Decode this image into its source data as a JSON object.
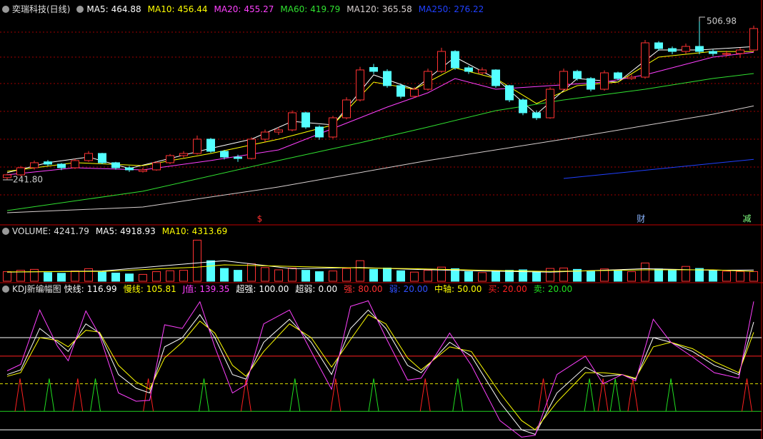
{
  "chart_data": {
    "type": "candlestick",
    "title": "奕瑞科技(日线)",
    "ylim": [
      184.4,
      518.98
    ],
    "candles": [
      [
        245.5,
        252.0,
        241.8,
        250.2
      ],
      [
        250.2,
        265.0,
        248.0,
        262.1
      ],
      [
        262.1,
        274.0,
        259.0,
        270.5
      ],
      [
        272.0,
        275.0,
        265.0,
        268.1
      ],
      [
        268.1,
        270.0,
        258.0,
        262.1
      ],
      [
        262.1,
        277.0,
        260.0,
        274.1
      ],
      [
        274.1,
        290.0,
        272.0,
        286.0
      ],
      [
        286.0,
        287.0,
        268.0,
        270.5
      ],
      [
        270.5,
        272.0,
        259.0,
        262.1
      ],
      [
        262.1,
        265.0,
        255.0,
        258.5
      ],
      [
        256.0,
        262.0,
        254.0,
        258.5
      ],
      [
        258.5,
        273.0,
        257.0,
        270.5
      ],
      [
        270.5,
        285.0,
        268.0,
        282.4
      ],
      [
        282.4,
        290.0,
        279.0,
        286.0
      ],
      [
        286.0,
        316.0,
        284.0,
        309.9
      ],
      [
        309.9,
        312.0,
        287.0,
        289.6
      ],
      [
        289.6,
        292.0,
        276.0,
        280.0
      ],
      [
        280.0,
        284.0,
        272.0,
        277.6
      ],
      [
        277.6,
        313.0,
        276.0,
        309.9
      ],
      [
        309.9,
        326.0,
        305.0,
        321.8
      ],
      [
        321.8,
        330.0,
        317.0,
        325.4
      ],
      [
        325.4,
        358.0,
        323.0,
        354.1
      ],
      [
        354.1,
        356.0,
        327.0,
        330.2
      ],
      [
        330.2,
        333.0,
        309.0,
        313.5
      ],
      [
        313.5,
        349.0,
        311.0,
        345.7
      ],
      [
        345.7,
        380.0,
        343.0,
        375.6
      ],
      [
        375.6,
        431.0,
        373.0,
        425.8
      ],
      [
        430.0,
        436.0,
        419.0,
        423.4
      ],
      [
        423.4,
        427.0,
        396.0,
        399.5
      ],
      [
        399.5,
        403.0,
        378.0,
        381.6
      ],
      [
        381.6,
        397.0,
        379.0,
        393.5
      ],
      [
        393.5,
        428.0,
        391.0,
        423.4
      ],
      [
        423.4,
        463.0,
        421.0,
        456.8
      ],
      [
        456.8,
        459.0,
        426.0,
        429.4
      ],
      [
        429.4,
        433.0,
        419.0,
        423.4
      ],
      [
        421.0,
        430.0,
        418.0,
        425.8
      ],
      [
        425.8,
        427.0,
        396.0,
        399.5
      ],
      [
        399.5,
        401.0,
        372.0,
        375.6
      ],
      [
        375.6,
        378.0,
        350.0,
        354.1
      ],
      [
        354.1,
        358.0,
        342.0,
        345.7
      ],
      [
        345.7,
        397.0,
        344.0,
        393.5
      ],
      [
        393.5,
        428.0,
        391.0,
        423.4
      ],
      [
        423.4,
        426.0,
        408.0,
        411.4
      ],
      [
        411.4,
        414.0,
        390.0,
        393.5
      ],
      [
        393.5,
        425.0,
        391.0,
        421.0
      ],
      [
        421.0,
        423.0,
        408.0,
        411.4
      ],
      [
        411.4,
        418.0,
        409.0,
        413.8
      ],
      [
        413.8,
        476.0,
        411.0,
        471.2
      ],
      [
        471.2,
        474.0,
        458.0,
        461.6
      ],
      [
        461.6,
        465.0,
        452.0,
        456.8
      ],
      [
        456.8,
        470.0,
        453.0,
        465.2
      ],
      [
        465.2,
        506.98,
        452.0,
        456.8
      ],
      [
        456.8,
        460.0,
        449.0,
        453.3
      ],
      [
        452.0,
        458.0,
        448.0,
        453.3
      ],
      [
        453.3,
        463.0,
        446.0,
        459.2
      ],
      [
        459.2,
        500.0,
        457.0,
        495.1
      ]
    ],
    "min_label": {
      "value": 241.8,
      "label": "241.80"
    },
    "max_label": 506.98,
    "ma": [
      {
        "name": "MA5:",
        "color": "#ffffff",
        "x": [
          0,
          3,
          6,
          9,
          12,
          15,
          18,
          21,
          24,
          27,
          30,
          33,
          36,
          39,
          42,
          45,
          48,
          51,
          55
        ],
        "values": [
          253.8,
          270.5,
          280.0,
          260.9,
          277.6,
          294.4,
          309.9,
          339.8,
          333.8,
          417.5,
          393.5,
          447.3,
          411.4,
          351.7,
          411.4,
          405.5,
          459.2,
          459.2,
          464.88
        ]
      },
      {
        "name": "MA10:",
        "color": "#ffff00",
        "x": [
          0,
          5,
          10,
          15,
          20,
          24,
          27,
          30,
          33,
          36,
          39,
          42,
          45,
          48,
          52,
          55
        ],
        "values": [
          256.1,
          270.5,
          265.7,
          286.0,
          309.9,
          333.8,
          405.5,
          393.5,
          429.4,
          411.4,
          369.6,
          399.5,
          405.5,
          447.3,
          456.8,
          456.44
        ]
      },
      {
        "name": "MA20:",
        "color": "#ff40ff",
        "x": [
          0,
          5,
          10,
          15,
          20,
          24,
          28,
          31,
          33,
          36,
          40,
          44,
          47,
          52,
          55
        ],
        "values": [
          250.2,
          262.1,
          258.5,
          274.1,
          292.0,
          327.8,
          363.6,
          387.5,
          411.4,
          393.5,
          399.5,
          405.5,
          417.5,
          447.3,
          455.27
        ]
      },
      {
        "name": "MA60:",
        "color": "#30e030",
        "x": [
          0,
          10,
          20,
          26,
          31,
          36,
          41,
          47,
          52,
          55
        ],
        "values": [
          190.4,
          222.7,
          274.1,
          303.9,
          330.2,
          357.7,
          375.6,
          393.5,
          411.5,
          419.79
        ]
      },
      {
        "name": "MA120:",
        "color": "#d8d0d0",
        "x": [
          0,
          10,
          20,
          31,
          41,
          52,
          55
        ],
        "values": [
          186.8,
          196.4,
          229.9,
          274.1,
          309.9,
          351.7,
          365.58
        ]
      },
      {
        "name": "MA250:",
        "color": "#2040ff",
        "x": [
          41,
          55
        ],
        "values": [
          244.2,
          276.22
        ]
      }
    ],
    "markers": [
      {
        "text": "$",
        "x": 18.6,
        "color": "#ff3030"
      },
      {
        "text": "财",
        "x": 46.7,
        "color": "#8ab4ff"
      },
      {
        "text": "减",
        "x": 54.5,
        "color": "#80ff80"
      }
    ],
    "volume": {
      "title": "VOLUME:",
      "ylim": [
        0,
        20000
      ],
      "values": [
        4200,
        4800,
        5200,
        3800,
        3500,
        4500,
        5500,
        4000,
        3600,
        3200,
        3000,
        4200,
        4600,
        4800,
        18000,
        9000,
        5600,
        4800,
        7600,
        6000,
        5000,
        5800,
        4800,
        4200,
        4500,
        5600,
        9000,
        5200,
        5800,
        4600,
        4000,
        4800,
        6200,
        5500,
        4200,
        3800,
        4600,
        4800,
        5000,
        4200,
        5600,
        5800,
        5200,
        4400,
        5400,
        4600,
        4200,
        8000,
        5400,
        5000,
        6500,
        5600,
        4600,
        4400,
        4300,
        4241.79
      ],
      "ma": [
        {
          "name": "MA5:",
          "color": "#ffffff",
          "x": [
            0,
            7,
            14,
            16,
            21,
            26,
            30,
            35,
            40,
            47,
            52,
            55
          ],
          "values": [
            4000,
            4500,
            8000,
            9000,
            5500,
            6000,
            5200,
            4500,
            4000,
            5500,
            4800,
            4918.93
          ]
        },
        {
          "name": "MA10:",
          "color": "#ffff00",
          "x": [
            0,
            7,
            14,
            16,
            21,
            26,
            30,
            35,
            40,
            47,
            52,
            55
          ],
          "values": [
            4100,
            4300,
            6200,
            7200,
            6500,
            5800,
            5500,
            4800,
            4300,
            5000,
            5000,
            4313.69
          ]
        }
      ]
    },
    "kdj": {
      "title": "KDJ新编幅图",
      "ylim": [
        -10,
        156.6
      ],
      "x": [
        0,
        1,
        2.4,
        3.7,
        4.5,
        5.8,
        6.8,
        8.2,
        9.5,
        10.5,
        11.6,
        12.9,
        14.2,
        15.3,
        16.6,
        17.6,
        18.9,
        20.8,
        22.4,
        23.9,
        25.3,
        26.6,
        27.9,
        29.5,
        30.5,
        32.6,
        34.2,
        36.3,
        37.9,
        38.9,
        40.5,
        42.6,
        43.9,
        45.3,
        46.3,
        47.6,
        48.9,
        50.5,
        52.1,
        53.9,
        55
      ],
      "series": [
        {
          "name": "快线:",
          "color": "#ffffff",
          "values": [
            60,
            65,
            110,
            95,
            85,
            115,
            105,
            60,
            45,
            40,
            90,
            100,
            125,
            100,
            60,
            55,
            95,
            120,
            95,
            60,
            110,
            130,
            110,
            70,
            62,
            95,
            80,
            30,
            0,
            -5,
            40,
            68,
            58,
            60,
            55,
            100,
            95,
            85,
            70,
            60,
            116.99
          ]
        },
        {
          "name": "慢线:",
          "color": "#ffff00",
          "values": [
            58,
            62,
            100,
            97,
            90,
            108,
            106,
            70,
            52,
            44,
            78,
            95,
            118,
            105,
            70,
            58,
            85,
            115,
            100,
            68,
            98,
            125,
            115,
            78,
            65,
            90,
            85,
            40,
            10,
            0,
            30,
            62,
            62,
            60,
            56,
            90,
            95,
            88,
            74,
            62,
            105.81
          ]
        },
        {
          "name": "J值:",
          "color": "#ff40ff",
          "values": [
            64,
            71,
            130,
            91,
            75,
            129,
            103,
            40,
            31,
            32,
            114,
            110,
            139,
            90,
            40,
            49,
            115,
            130,
            85,
            44,
            134,
            140,
            100,
            54,
            56,
            105,
            70,
            10,
            -8,
            -6,
            60,
            80,
            50,
            60,
            53,
            120,
            95,
            79,
            62,
            56,
            139.35
          ]
        }
      ],
      "levels": [
        {
          "name": "超强:",
          "value": {
            "value": 100,
            "label": "100.00"
          },
          "color": "#ffffff",
          "line_color": "#ffffff"
        },
        {
          "name": "超弱:",
          "value": {
            "value": 0,
            "label": "0.00"
          },
          "color": "#ffffff",
          "line_color": "#ffffff"
        },
        {
          "name": "强:",
          "value": {
            "value": 80,
            "label": "80.00"
          },
          "color": "#ff3030",
          "line_color": "#ff2020"
        },
        {
          "name": "弱:",
          "value": {
            "value": 20,
            "label": "20.00"
          },
          "color": "#3050ff",
          "line_color": "#20d020"
        },
        {
          "name": "中轴:",
          "value": {
            "value": 50,
            "label": "50.00"
          },
          "color": "#ffff00",
          "line_color": "#e0e000",
          "dashed": true
        }
      ],
      "signals": [
        {
          "name": "买:",
          "value": {
            "value": 20,
            "label": "20.00"
          },
          "color": "#ff2020",
          "x": [
            0.95,
            5.2,
            10.4,
            17.6,
            24.2,
            30.8,
            39.5,
            43.9,
            46.1,
            54.5
          ]
        },
        {
          "name": "卖:",
          "value": {
            "value": 20,
            "label": "20.00"
          },
          "color": "#20e020",
          "x": [
            3.1,
            6.5,
            14.5,
            21.2,
            27,
            33.2,
            42.9,
            44.8,
            48.9
          ]
        }
      ]
    }
  }
}
